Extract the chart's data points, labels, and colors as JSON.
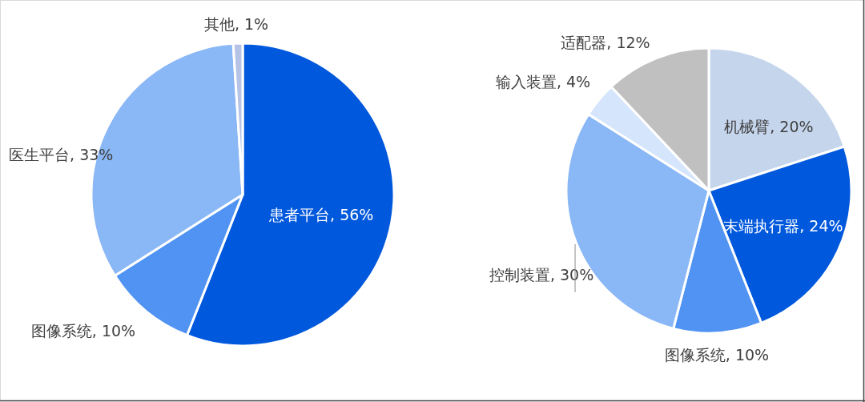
{
  "chart_data": [
    {
      "type": "pie",
      "categories": [
        "患者平台",
        "图像系统",
        "医生平台",
        "其他"
      ],
      "values": [
        56,
        10,
        33,
        1
      ],
      "value_labels": [
        "56%",
        "10%",
        "33%",
        "1%"
      ],
      "colors": [
        "#0058dc",
        "#5093f2",
        "#8ab7f5",
        "#b4c3e6"
      ]
    },
    {
      "type": "pie",
      "categories": [
        "机械臂",
        "末端执行器",
        "图像系统",
        "控制装置",
        "输入装置",
        "适配器"
      ],
      "values": [
        20,
        24,
        10,
        30,
        4,
        12
      ],
      "value_labels": [
        "20%",
        "24%",
        "10%",
        "30%",
        "4%",
        "12%"
      ],
      "colors": [
        "#c5d5ec",
        "#0058dc",
        "#5093f2",
        "#8ab7f5",
        "#d5e5fc",
        "#c0c0c0"
      ]
    }
  ]
}
